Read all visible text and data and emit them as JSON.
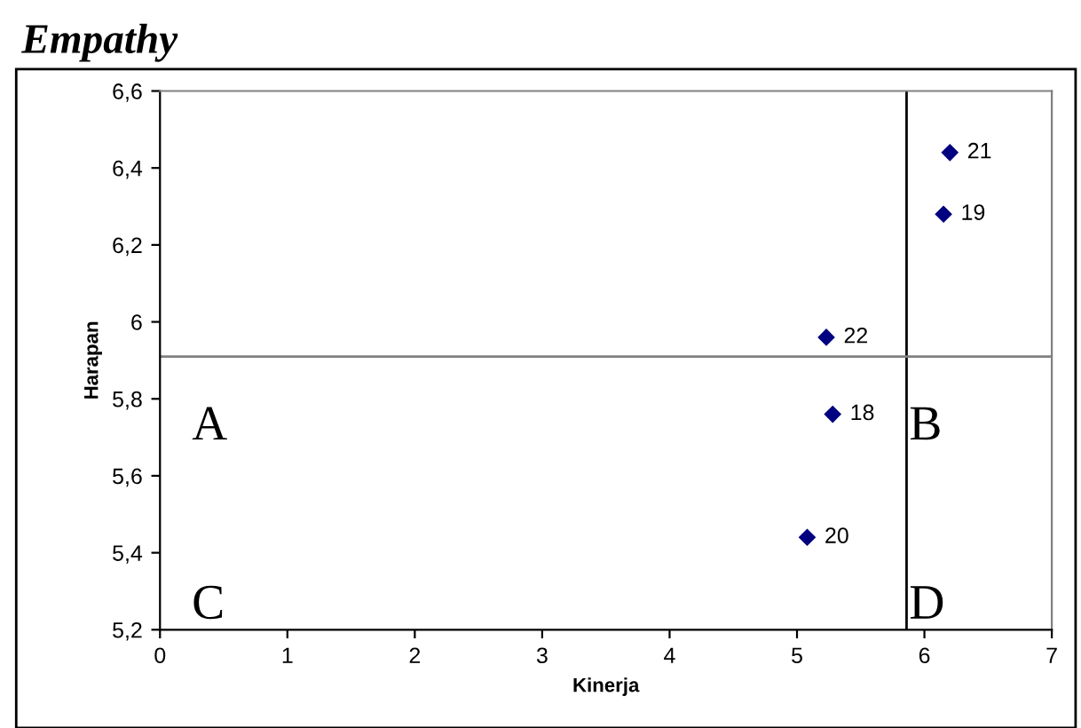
{
  "chart_data": {
    "type": "scatter",
    "title": "Empathy",
    "xlabel": "Kinerja",
    "ylabel": "Harapan",
    "x": [
      6.2,
      6.15,
      5.23,
      5.28,
      5.08
    ],
    "series": [
      {
        "color": "#000080",
        "values": [
          6.44,
          6.28,
          5.96,
          5.76,
          5.44
        ]
      }
    ],
    "marker": "diamond",
    "grid": false,
    "legend": false,
    "xlim": [
      0,
      7
    ],
    "xticks": [
      0,
      1,
      2,
      3,
      4,
      5,
      6,
      7
    ],
    "ylim": [
      5.2,
      6.6
    ],
    "yticks": [
      {
        "value": 5.2,
        "label": "5,2"
      },
      {
        "value": 5.4,
        "label": "5,4"
      },
      {
        "value": 5.6,
        "label": "5,6"
      },
      {
        "value": 5.8,
        "label": "5,8"
      },
      6,
      {
        "value": 6.2,
        "label": "6,2"
      },
      {
        "value": 6.4,
        "label": "6,4"
      },
      {
        "value": 6.6,
        "label": "6,6"
      }
    ],
    "ref_lines": [
      {
        "axis": "x",
        "value": 5.86,
        "color": "#000000"
      },
      {
        "axis": "y",
        "value": 5.91,
        "color": "#808080"
      }
    ],
    "annotations": [
      {
        "text": "21",
        "x": 6.2,
        "y": 6.44
      },
      {
        "text": "19",
        "x": 6.15,
        "y": 6.28
      },
      {
        "text": "22",
        "x": 5.23,
        "y": 5.96
      },
      {
        "text": "18",
        "x": 5.28,
        "y": 5.76
      },
      {
        "text": "20",
        "x": 5.08,
        "y": 5.44
      },
      "A",
      "B",
      "C",
      "D"
    ]
  }
}
